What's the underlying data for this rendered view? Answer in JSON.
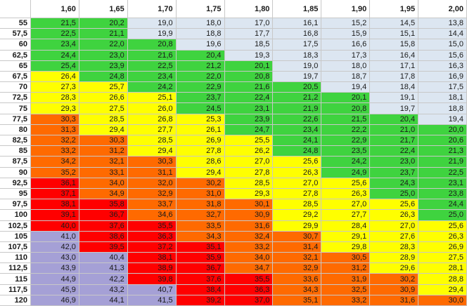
{
  "colors": {
    "lightblue": "#dce6f1",
    "green": "#3fd33f",
    "yellow": "#ffff00",
    "orange": "#ff6a00",
    "red": "#ff0000",
    "purple": "#a5a0d6"
  },
  "table": {
    "corner": "",
    "heights": [
      "1,60",
      "1,65",
      "1,70",
      "1,75",
      "1,80",
      "1,85",
      "1,90",
      "1,95",
      "2,00"
    ],
    "rows": [
      {
        "w": "55",
        "v": [
          "21,5",
          "20,2",
          "19,0",
          "18,0",
          "17,0",
          "16,1",
          "15,2",
          "14,5",
          "13,8"
        ],
        "c": [
          "green",
          "green",
          "lightblue",
          "lightblue",
          "lightblue",
          "lightblue",
          "lightblue",
          "lightblue",
          "lightblue"
        ]
      },
      {
        "w": "57,5",
        "v": [
          "22,5",
          "21,1",
          "19,9",
          "18,8",
          "17,7",
          "16,8",
          "15,9",
          "15,1",
          "14,4"
        ],
        "c": [
          "green",
          "green",
          "lightblue",
          "lightblue",
          "lightblue",
          "lightblue",
          "lightblue",
          "lightblue",
          "lightblue"
        ]
      },
      {
        "w": "60",
        "v": [
          "23,4",
          "22,0",
          "20,8",
          "19,6",
          "18,5",
          "17,5",
          "16,6",
          "15,8",
          "15,0"
        ],
        "c": [
          "green",
          "green",
          "green",
          "lightblue",
          "lightblue",
          "lightblue",
          "lightblue",
          "lightblue",
          "lightblue"
        ]
      },
      {
        "w": "62,5",
        "v": [
          "24,4",
          "23,0",
          "21,6",
          "20,4",
          "19,3",
          "18,3",
          "17,3",
          "16,4",
          "15,6"
        ],
        "c": [
          "green",
          "green",
          "green",
          "green",
          "lightblue",
          "lightblue",
          "lightblue",
          "lightblue",
          "lightblue"
        ]
      },
      {
        "w": "65",
        "v": [
          "25,4",
          "23,9",
          "22,5",
          "21,2",
          "20,1",
          "19,0",
          "18,0",
          "17,1",
          "16,3"
        ],
        "c": [
          "green",
          "green",
          "green",
          "green",
          "green",
          "lightblue",
          "lightblue",
          "lightblue",
          "lightblue"
        ]
      },
      {
        "w": "67,5",
        "v": [
          "26,4",
          "24,8",
          "23,4",
          "22,0",
          "20,8",
          "19,7",
          "18,7",
          "17,8",
          "16,9"
        ],
        "c": [
          "yellow",
          "green",
          "green",
          "green",
          "green",
          "lightblue",
          "lightblue",
          "lightblue",
          "lightblue"
        ]
      },
      {
        "w": "70",
        "v": [
          "27,3",
          "25,7",
          "24,2",
          "22,9",
          "21,6",
          "20,5",
          "19,4",
          "18,4",
          "17,5"
        ],
        "c": [
          "yellow",
          "yellow",
          "green",
          "green",
          "green",
          "green",
          "lightblue",
          "lightblue",
          "lightblue"
        ]
      },
      {
        "w": "72,5",
        "v": [
          "28,3",
          "26,6",
          "25,1",
          "23,7",
          "22,4",
          "21,2",
          "20,1",
          "19,1",
          "18,1"
        ],
        "c": [
          "yellow",
          "yellow",
          "yellow",
          "green",
          "green",
          "green",
          "green",
          "lightblue",
          "lightblue"
        ]
      },
      {
        "w": "75",
        "v": [
          "29,3",
          "27,5",
          "26,0",
          "24,5",
          "23,1",
          "21,9",
          "20,8",
          "19,7",
          "18,8"
        ],
        "c": [
          "yellow",
          "yellow",
          "yellow",
          "green",
          "green",
          "green",
          "green",
          "lightblue",
          "lightblue"
        ]
      },
      {
        "w": "77,5",
        "v": [
          "30,3",
          "28,5",
          "26,8",
          "25,3",
          "23,9",
          "22,6",
          "21,5",
          "20,4",
          "19,4"
        ],
        "c": [
          "orange",
          "yellow",
          "yellow",
          "yellow",
          "green",
          "green",
          "green",
          "green",
          "lightblue"
        ]
      },
      {
        "w": "80",
        "v": [
          "31,3",
          "29,4",
          "27,7",
          "26,1",
          "24,7",
          "23,4",
          "22,2",
          "21,0",
          "20,0"
        ],
        "c": [
          "orange",
          "yellow",
          "yellow",
          "yellow",
          "green",
          "green",
          "green",
          "green",
          "green"
        ]
      },
      {
        "w": "82,5",
        "v": [
          "32,2",
          "30,3",
          "28,5",
          "26,9",
          "25,5",
          "24,1",
          "22,9",
          "21,7",
          "20,6"
        ],
        "c": [
          "orange",
          "orange",
          "yellow",
          "yellow",
          "yellow",
          "green",
          "green",
          "green",
          "green"
        ]
      },
      {
        "w": "85",
        "v": [
          "33,2",
          "31,2",
          "29,4",
          "27,8",
          "26,2",
          "24,8",
          "23,5",
          "22,4",
          "21,3"
        ],
        "c": [
          "orange",
          "orange",
          "yellow",
          "yellow",
          "yellow",
          "green",
          "green",
          "green",
          "green"
        ]
      },
      {
        "w": "87,5",
        "v": [
          "34,2",
          "32,1",
          "30,3",
          "28,6",
          "27,0",
          "25,6",
          "24,2",
          "23,0",
          "21,9"
        ],
        "c": [
          "orange",
          "orange",
          "orange",
          "yellow",
          "yellow",
          "yellow",
          "green",
          "green",
          "green"
        ]
      },
      {
        "w": "90",
        "v": [
          "35,2",
          "33,1",
          "31,1",
          "29,4",
          "27,8",
          "26,3",
          "24,9",
          "23,7",
          "22,5"
        ],
        "c": [
          "orange",
          "orange",
          "orange",
          "yellow",
          "yellow",
          "yellow",
          "green",
          "green",
          "green"
        ]
      },
      {
        "w": "92,5",
        "v": [
          "36,1",
          "34,0",
          "32,0",
          "30,2",
          "28,5",
          "27,0",
          "25,6",
          "24,3",
          "23,1"
        ],
        "c": [
          "red",
          "orange",
          "orange",
          "orange",
          "yellow",
          "yellow",
          "yellow",
          "green",
          "green"
        ]
      },
      {
        "w": "95",
        "v": [
          "37,1",
          "34,9",
          "32,9",
          "31,0",
          "29,3",
          "27,8",
          "26,3",
          "25,0",
          "23,8"
        ],
        "c": [
          "red",
          "orange",
          "orange",
          "orange",
          "yellow",
          "yellow",
          "yellow",
          "green",
          "green"
        ]
      },
      {
        "w": "97,5",
        "v": [
          "38,1",
          "35,8",
          "33,7",
          "31,8",
          "30,1",
          "28,5",
          "27,0",
          "25,6",
          "24,4"
        ],
        "c": [
          "red",
          "red",
          "orange",
          "orange",
          "orange",
          "yellow",
          "yellow",
          "yellow",
          "green"
        ]
      },
      {
        "w": "100",
        "v": [
          "39,1",
          "36,7",
          "34,6",
          "32,7",
          "30,9",
          "29,2",
          "27,7",
          "26,3",
          "25,0"
        ],
        "c": [
          "red",
          "red",
          "orange",
          "orange",
          "orange",
          "yellow",
          "yellow",
          "yellow",
          "green"
        ]
      },
      {
        "w": "102,5",
        "v": [
          "40,0",
          "37,6",
          "35,5",
          "33,5",
          "31,6",
          "29,9",
          "28,4",
          "27,0",
          "25,6"
        ],
        "c": [
          "red",
          "red",
          "red",
          "orange",
          "orange",
          "yellow",
          "yellow",
          "yellow",
          "yellow"
        ]
      },
      {
        "w": "105",
        "v": [
          "41,0",
          "38,6",
          "36,3",
          "34,3",
          "32,4",
          "30,7",
          "29,1",
          "27,6",
          "26,3"
        ],
        "c": [
          "purple",
          "red",
          "red",
          "orange",
          "orange",
          "orange",
          "yellow",
          "yellow",
          "yellow"
        ]
      },
      {
        "w": "107,5",
        "v": [
          "42,0",
          "39,5",
          "37,2",
          "35,1",
          "33,2",
          "31,4",
          "29,8",
          "28,3",
          "26,9"
        ],
        "c": [
          "purple",
          "red",
          "red",
          "red",
          "orange",
          "orange",
          "yellow",
          "yellow",
          "yellow"
        ]
      },
      {
        "w": "110",
        "v": [
          "43,0",
          "40,4",
          "38,1",
          "35,9",
          "34,0",
          "32,1",
          "30,5",
          "28,9",
          "27,5"
        ],
        "c": [
          "purple",
          "purple",
          "red",
          "red",
          "orange",
          "orange",
          "orange",
          "yellow",
          "yellow"
        ]
      },
      {
        "w": "112,5",
        "v": [
          "43,9",
          "41,3",
          "38,9",
          "36,7",
          "34,7",
          "32,9",
          "31,2",
          "29,6",
          "28,1"
        ],
        "c": [
          "purple",
          "purple",
          "red",
          "red",
          "orange",
          "orange",
          "orange",
          "yellow",
          "yellow"
        ]
      },
      {
        "w": "115",
        "v": [
          "44,9",
          "42,2",
          "39,8",
          "37,6",
          "35,5",
          "33,6",
          "31,9",
          "30,2",
          "28,8"
        ],
        "c": [
          "purple",
          "purple",
          "red",
          "red",
          "red",
          "orange",
          "orange",
          "orange",
          "yellow"
        ]
      },
      {
        "w": "117,5",
        "v": [
          "45,9",
          "43,2",
          "40,7",
          "38,4",
          "36,3",
          "34,3",
          "32,5",
          "30,9",
          "29,4"
        ],
        "c": [
          "purple",
          "purple",
          "purple",
          "red",
          "red",
          "orange",
          "orange",
          "orange",
          "yellow"
        ]
      },
      {
        "w": "120",
        "v": [
          "46,9",
          "44,1",
          "41,5",
          "39,2",
          "37,0",
          "35,1",
          "33,2",
          "31,6",
          "30,0"
        ],
        "c": [
          "purple",
          "purple",
          "purple",
          "red",
          "red",
          "orange",
          "orange",
          "orange",
          "orange"
        ]
      }
    ]
  }
}
